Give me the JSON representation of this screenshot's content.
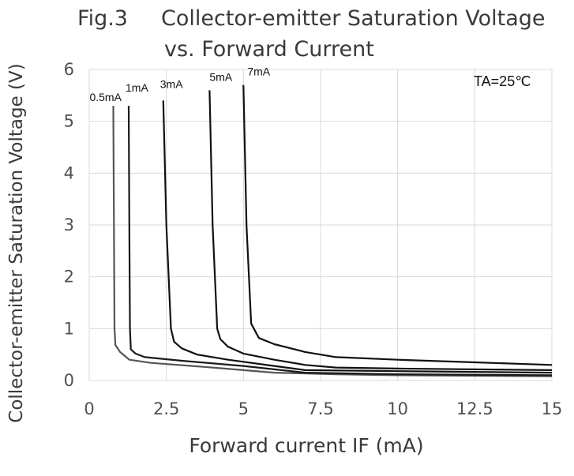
{
  "chart_data": {
    "type": "line",
    "fig_number": "Fig.3",
    "title_line1": "Collector-emitter Saturation Voltage",
    "title_line2": "vs. Forward Current",
    "xlabel": "Forward current IF (mA)",
    "ylabel": "Collector-emitter Saturation Voltage (V)",
    "xlim": [
      0,
      15
    ],
    "ylim": [
      0,
      6
    ],
    "x_ticks": [
      0,
      2.5,
      5,
      7.5,
      10,
      12.5,
      15
    ],
    "x_tick_labels": [
      "0",
      "2.5",
      "5",
      "7.5",
      "10",
      "12.5",
      "15"
    ],
    "y_ticks": [
      0,
      1,
      2,
      3,
      4,
      5,
      6
    ],
    "y_tick_labels": [
      "0",
      "1",
      "2",
      "3",
      "4",
      "5",
      "6"
    ],
    "grid": true,
    "annotation": "TA=25℃",
    "series": [
      {
        "name": "0.5mA",
        "color": "#555555",
        "points": [
          [
            0.78,
            5.3
          ],
          [
            0.8,
            3.0
          ],
          [
            0.82,
            1.0
          ],
          [
            0.85,
            0.68
          ],
          [
            1.0,
            0.55
          ],
          [
            1.3,
            0.4
          ],
          [
            2.0,
            0.34
          ],
          [
            4.0,
            0.25
          ],
          [
            6.0,
            0.15
          ],
          [
            8.0,
            0.12
          ],
          [
            10.0,
            0.1
          ],
          [
            15.0,
            0.08
          ]
        ]
      },
      {
        "name": "1mA",
        "color": "#1a1a1a",
        "points": [
          [
            1.28,
            5.3
          ],
          [
            1.3,
            3.0
          ],
          [
            1.32,
            1.0
          ],
          [
            1.35,
            0.6
          ],
          [
            1.5,
            0.52
          ],
          [
            1.8,
            0.45
          ],
          [
            3.0,
            0.38
          ],
          [
            5.0,
            0.28
          ],
          [
            7.0,
            0.15
          ],
          [
            10.0,
            0.12
          ],
          [
            15.0,
            0.1
          ]
        ]
      },
      {
        "name": "3mA",
        "color": "#111111",
        "points": [
          [
            2.4,
            5.4
          ],
          [
            2.5,
            3.0
          ],
          [
            2.65,
            1.0
          ],
          [
            2.75,
            0.75
          ],
          [
            3.0,
            0.62
          ],
          [
            3.5,
            0.5
          ],
          [
            4.5,
            0.4
          ],
          [
            6.0,
            0.28
          ],
          [
            7.0,
            0.2
          ],
          [
            10.0,
            0.18
          ],
          [
            15.0,
            0.15
          ]
        ]
      },
      {
        "name": "5mA",
        "color": "#111111",
        "points": [
          [
            3.9,
            5.6
          ],
          [
            4.0,
            3.0
          ],
          [
            4.15,
            1.0
          ],
          [
            4.25,
            0.8
          ],
          [
            4.5,
            0.65
          ],
          [
            5.0,
            0.52
          ],
          [
            6.0,
            0.4
          ],
          [
            7.0,
            0.3
          ],
          [
            8.0,
            0.25
          ],
          [
            10.0,
            0.23
          ],
          [
            15.0,
            0.2
          ]
        ]
      },
      {
        "name": "7mA",
        "color": "#111111",
        "points": [
          [
            5.0,
            5.7
          ],
          [
            5.1,
            3.0
          ],
          [
            5.25,
            1.1
          ],
          [
            5.5,
            0.82
          ],
          [
            6.0,
            0.7
          ],
          [
            7.0,
            0.55
          ],
          [
            8.0,
            0.45
          ],
          [
            10.0,
            0.4
          ],
          [
            12.5,
            0.35
          ],
          [
            15.0,
            0.3
          ]
        ]
      }
    ]
  }
}
